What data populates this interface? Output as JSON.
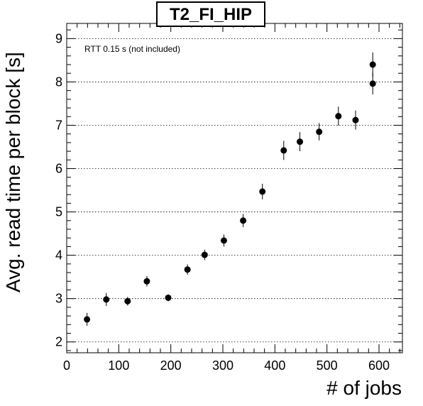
{
  "chart_data": {
    "type": "scatter",
    "title": "T2_FI_HIP",
    "xlabel": "# of jobs",
    "ylabel": "Avg. read time per block [s]",
    "annotation": "RTT 0.15 s (not included)",
    "xlim": [
      0,
      645
    ],
    "ylim": [
      1.75,
      9.35
    ],
    "xticks": [
      0,
      100,
      200,
      300,
      400,
      500,
      600
    ],
    "yticks": [
      2,
      3,
      4,
      5,
      6,
      7,
      8,
      9
    ],
    "grid": "horizontal-dotted",
    "points": [
      {
        "x": 39,
        "y": 2.52,
        "err": 0.15
      },
      {
        "x": 76,
        "y": 2.98,
        "err": 0.15
      },
      {
        "x": 117,
        "y": 2.94,
        "err": 0.1
      },
      {
        "x": 154,
        "y": 3.4,
        "err": 0.12
      },
      {
        "x": 195,
        "y": 3.02,
        "err": 0.08
      },
      {
        "x": 232,
        "y": 3.67,
        "err": 0.12
      },
      {
        "x": 265,
        "y": 4.01,
        "err": 0.12
      },
      {
        "x": 302,
        "y": 4.34,
        "err": 0.14
      },
      {
        "x": 339,
        "y": 4.8,
        "err": 0.15
      },
      {
        "x": 376,
        "y": 5.47,
        "err": 0.18
      },
      {
        "x": 417,
        "y": 6.42,
        "err": 0.22
      },
      {
        "x": 448,
        "y": 6.62,
        "err": 0.22
      },
      {
        "x": 485,
        "y": 6.85,
        "err": 0.2
      },
      {
        "x": 522,
        "y": 7.21,
        "err": 0.22
      },
      {
        "x": 555,
        "y": 7.12,
        "err": 0.22
      },
      {
        "x": 588,
        "y": 7.96,
        "err": 0.25
      },
      {
        "x": 588,
        "y": 8.4,
        "err": 0.28
      }
    ]
  }
}
